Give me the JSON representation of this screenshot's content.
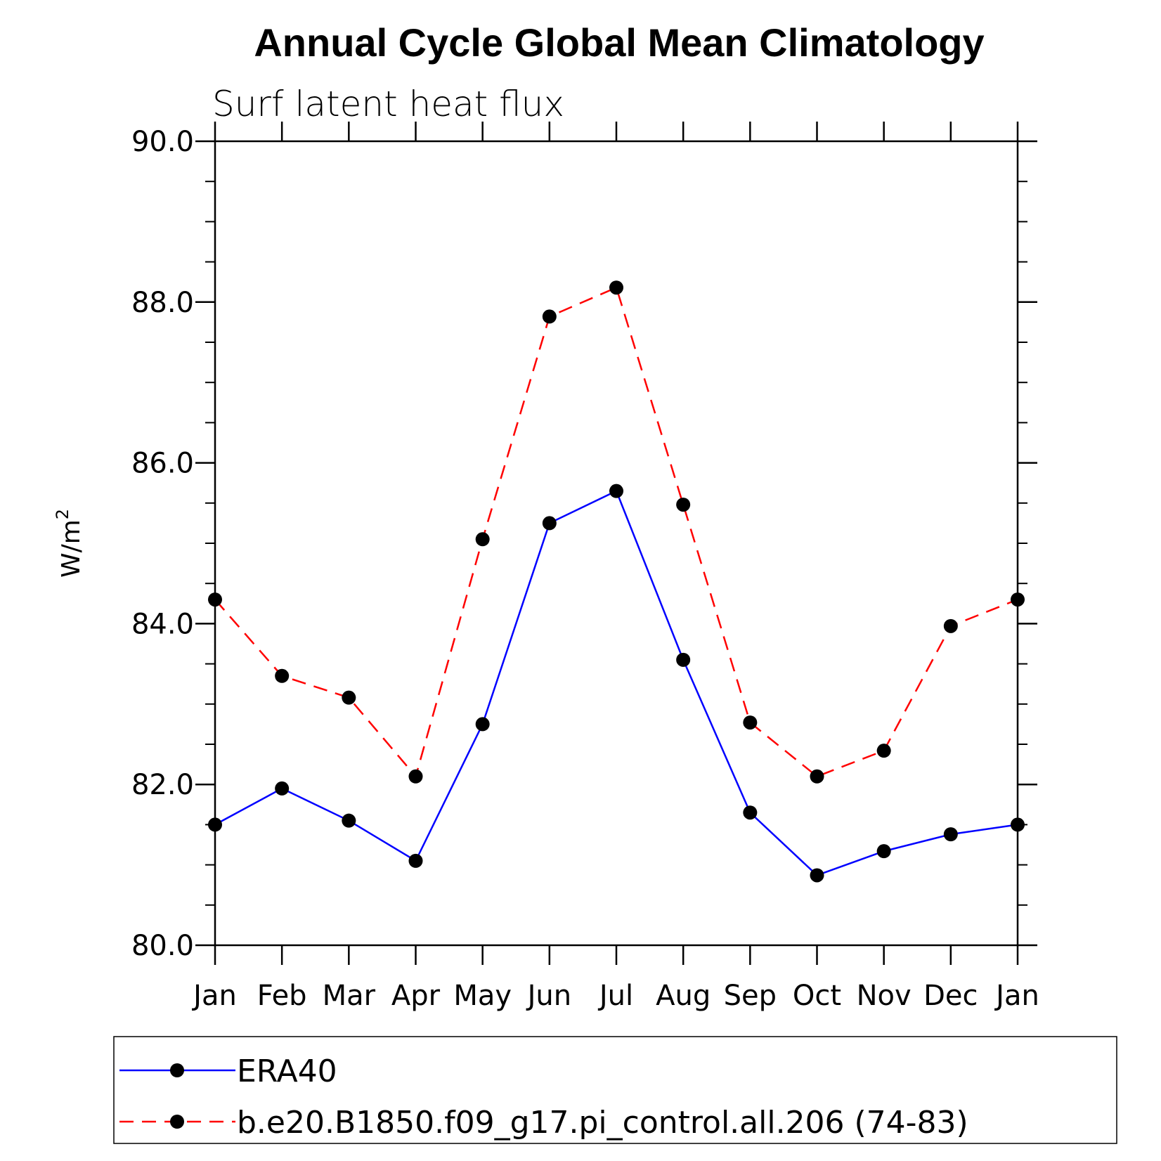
{
  "chart_data": {
    "type": "line",
    "title": "Annual Cycle Global Mean Climatology",
    "subtitle": "Surf latent heat flux",
    "xlabel": "",
    "ylabel": "W/m",
    "ylabel_sup": "2",
    "categories": [
      "Jan",
      "Feb",
      "Mar",
      "Apr",
      "May",
      "Jun",
      "Jul",
      "Aug",
      "Sep",
      "Oct",
      "Nov",
      "Dec",
      "Jan"
    ],
    "ylim": [
      80.0,
      90.0
    ],
    "yticks": [
      80.0,
      82.0,
      84.0,
      86.0,
      88.0,
      90.0
    ],
    "ytick_labels": [
      "80.0",
      "82.0",
      "84.0",
      "86.0",
      "88.0",
      "90.0"
    ],
    "y_minor_step": 0.5,
    "grid": false,
    "legend_position": "bottom",
    "series": [
      {
        "name": "ERA40",
        "color": "#0000ff",
        "style": "solid",
        "values": [
          81.5,
          81.95,
          81.55,
          81.05,
          82.75,
          85.25,
          85.65,
          83.55,
          81.65,
          80.87,
          81.17,
          81.38,
          81.5
        ]
      },
      {
        "name": "b.e20.B1850.f09_g17.pi_control.all.206 (74-83)",
        "color": "#ff0000",
        "style": "dashed",
        "values": [
          84.3,
          83.35,
          83.08,
          82.1,
          85.05,
          87.82,
          88.18,
          85.48,
          82.77,
          82.1,
          82.42,
          83.97,
          84.3
        ]
      }
    ]
  }
}
